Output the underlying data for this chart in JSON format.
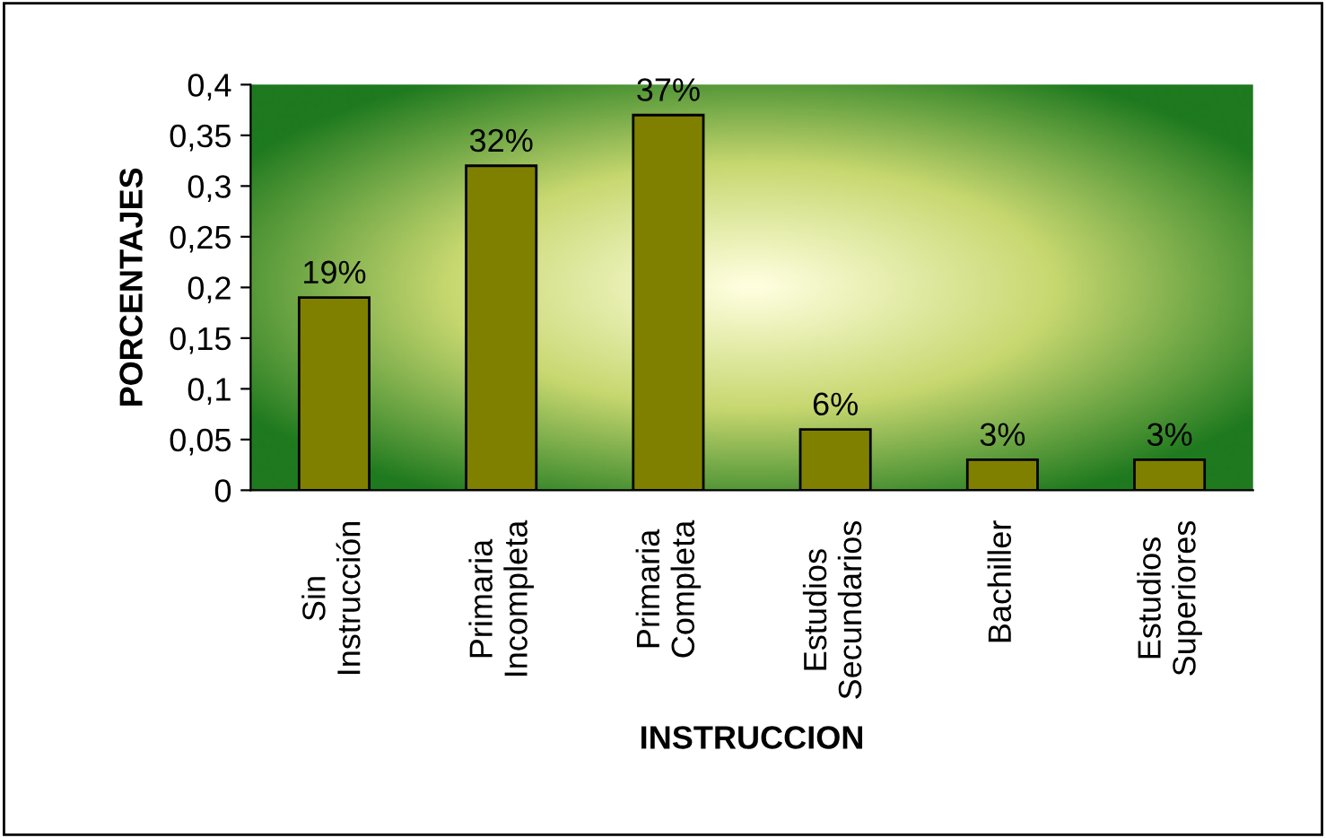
{
  "chart_data": {
    "type": "bar",
    "xlabel": "INSTRUCCION",
    "ylabel": "PORCENTAJES",
    "categories": [
      "Sin\nInstrucción",
      "Primaria\nIncompleta",
      "Primaria\nCompleta",
      "Estudios\nSecundarios",
      "Bachiller",
      "Estudios\nSuperiores"
    ],
    "values": [
      0.19,
      0.32,
      0.37,
      0.06,
      0.03,
      0.03
    ],
    "value_labels": [
      "19%",
      "32%",
      "37%",
      "6%",
      "3%",
      "3%"
    ],
    "color": "#808000",
    "ylim": [
      0,
      0.4
    ],
    "yticks": [
      0,
      {
        "value": 0.05,
        "label": "0,05"
      },
      {
        "value": 0.1,
        "label": "0,1"
      },
      {
        "value": 0.15,
        "label": "0,15"
      },
      {
        "value": 0.2,
        "label": "0,2"
      },
      {
        "value": 0.25,
        "label": "0,25"
      },
      {
        "value": 0.3,
        "label": "0,3"
      },
      {
        "value": 0.35,
        "label": "0,35"
      },
      {
        "value": 0.4,
        "label": "0,4"
      }
    ],
    "grid": false
  }
}
